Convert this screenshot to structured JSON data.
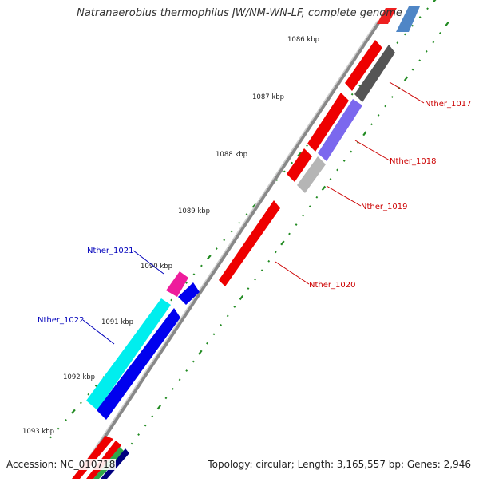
{
  "title": "Natranaerobius thermophilus JW/NM-WN-LF, complete genome",
  "accession": "Accession: NC_010718",
  "summary": "Topology: circular; Length: 3,165,557 bp; Genes: 2,946",
  "ticks": [
    {
      "label": "1086 kbp"
    },
    {
      "label": "1087 kbp"
    },
    {
      "label": "1088 kbp"
    },
    {
      "label": "1089 kbp"
    },
    {
      "label": "1090 kbp"
    },
    {
      "label": "1091 kbp"
    },
    {
      "label": "1092 kbp"
    },
    {
      "label": "1093 kbp"
    }
  ],
  "genes": [
    {
      "name": "Nther_1017",
      "color": "#cc0000"
    },
    {
      "name": "Nther_1018",
      "color": "#cc0000"
    },
    {
      "name": "Nther_1019",
      "color": "#cc0000"
    },
    {
      "name": "Nther_1020",
      "color": "#cc0000"
    },
    {
      "name": "Nther_1021",
      "color": "#0000bb"
    },
    {
      "name": "Nther_1022",
      "color": "#0000bb"
    }
  ],
  "colors": {
    "red": "#ff0000",
    "dark_gray": "#555555",
    "purple": "#7b68ee",
    "light_gray": "#b5b5b5",
    "magenta": "#ee1c9c",
    "blue": "#0000ee",
    "cyan": "#00eeee",
    "steel_blue": "#4f86c6",
    "tick_green": "#228b22"
  }
}
